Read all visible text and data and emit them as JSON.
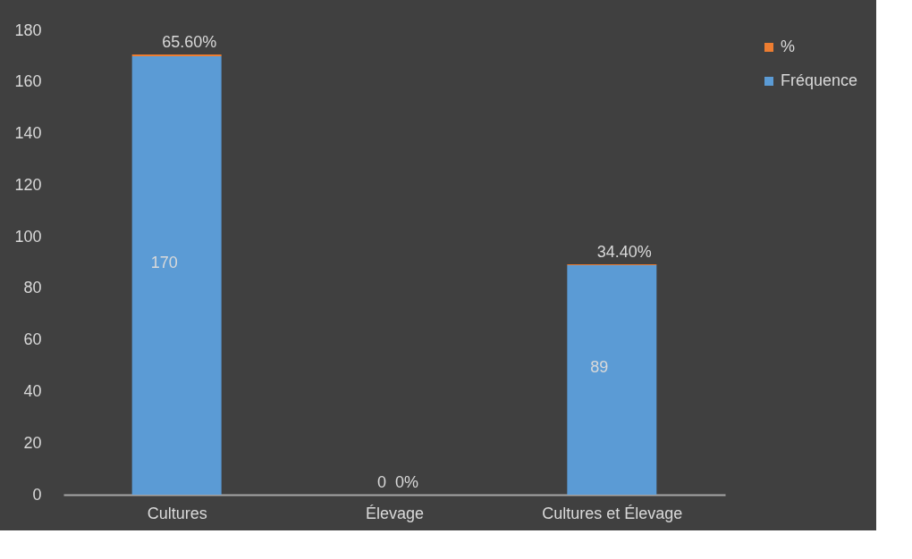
{
  "chart_data": {
    "type": "bar",
    "stacked": true,
    "categories": [
      "Cultures",
      "Élevage",
      "Cultures et Élevage"
    ],
    "series": [
      {
        "name": "Fréquence",
        "color": "#5b9bd5",
        "values": [
          170,
          0,
          89
        ],
        "value_labels": [
          "170",
          "0",
          "89"
        ]
      },
      {
        "name": "%",
        "color": "#ed7d31",
        "values": [
          0.656,
          0,
          0.344
        ],
        "value_labels": [
          "65.60%",
          "0%",
          "34.40%"
        ]
      }
    ],
    "ylim": [
      0,
      180
    ],
    "yticks": [
      0,
      20,
      40,
      60,
      80,
      100,
      120,
      140,
      160,
      180
    ],
    "grid": false,
    "legend": "right"
  }
}
